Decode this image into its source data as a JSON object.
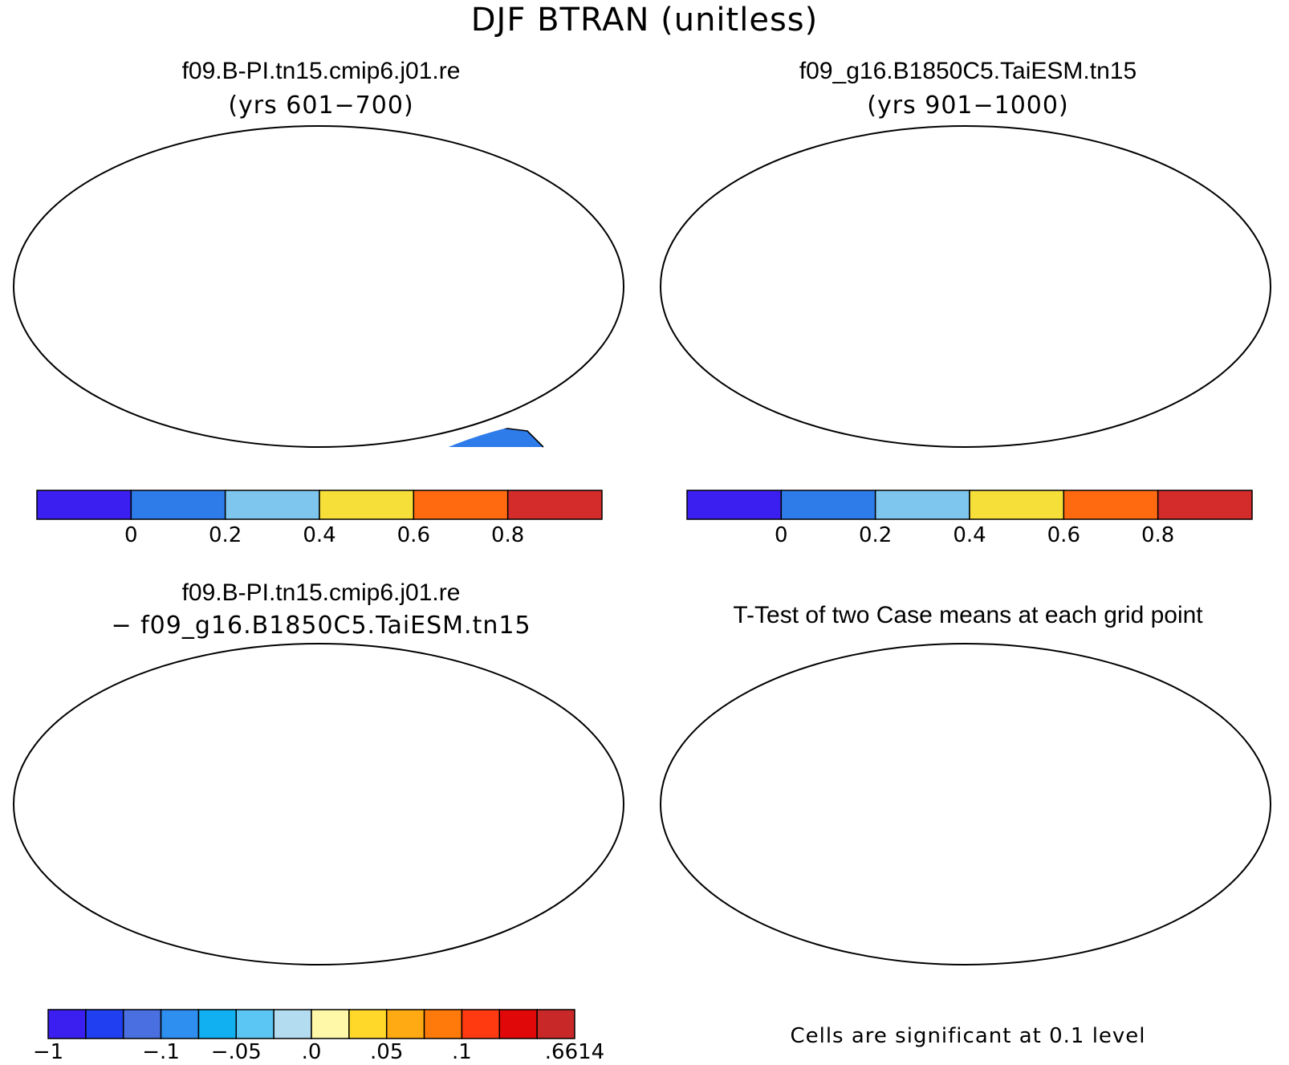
{
  "figure_title": "DJF BTRAN (unitless)",
  "panels": [
    {
      "id": "case1",
      "title": "f09.B-PI.tn15.cmip6.j01.re",
      "subtitle": "(yrs 601−700)"
    },
    {
      "id": "case2",
      "title": "f09_g16.B1850C5.TaiESM.tn15",
      "subtitle": "(yrs 901−1000)"
    },
    {
      "id": "difference",
      "title": "f09.B-PI.tn15.cmip6.j01.re",
      "subtitle": "− f09_g16.B1850C5.TaiESM.tn15"
    },
    {
      "id": "ttest",
      "title": "T-Test of two Case means at each grid point",
      "note": "Cells are significant at 0.1 level"
    }
  ],
  "colorbars": {
    "btran": {
      "colors": [
        "#3a1ff0",
        "#2e7bea",
        "#7ec6ee",
        "#f7df3a",
        "#ff6a10",
        "#d42b2b"
      ],
      "ticks": [
        "0",
        "0.2",
        "0.4",
        "0.6",
        "0.8"
      ]
    },
    "diff": {
      "colors": [
        "#3a1ff0",
        "#1f3ff0",
        "#4a6fe0",
        "#2e8ff0",
        "#11b0f0",
        "#5bc6f4",
        "#b4dcf0",
        "#fff8a8",
        "#ffd82a",
        "#ffaa12",
        "#ff7a0a",
        "#ff3a10",
        "#e00808",
        "#c82828"
      ],
      "ticks": [
        "−1",
        "−.1",
        "−.05",
        ".0",
        ".05",
        ".1",
        ".6614"
      ]
    }
  },
  "colors": {
    "land_low": "#2e7bea",
    "land_high": "#d42b2b",
    "diff_neutral": "#fff8a8",
    "significant": "#ff0000"
  }
}
